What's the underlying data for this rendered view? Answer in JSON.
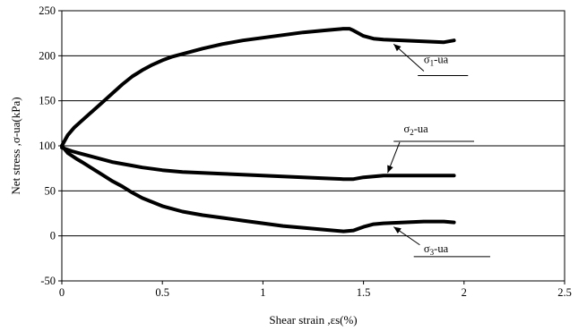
{
  "chart_data": {
    "type": "line",
    "title": "",
    "xlabel": "Shear strain ,εs(%)",
    "ylabel": "Net stress ,σ-ua(kPa)",
    "xlim": [
      0,
      2.5
    ],
    "ylim": [
      -50,
      250
    ],
    "x_ticks": [
      0,
      0.5,
      1,
      1.5,
      2,
      2.5
    ],
    "x_tick_labels": [
      "0",
      "0.5",
      "1",
      "1.5",
      "2",
      "2.5"
    ],
    "y_ticks": [
      -50,
      0,
      50,
      100,
      150,
      200,
      250
    ],
    "y_tick_labels": [
      "-50",
      "0",
      "50",
      "100",
      "150",
      "200",
      "250"
    ],
    "grid": "horizontal",
    "series": [
      {
        "label": "σ1-ua",
        "label_sub": {
          "base": "σ",
          "sub": "1",
          "rest": "-ua"
        },
        "label_anchor": [
          1.8,
          192
        ],
        "label_line": [
          [
            1.77,
            178
          ],
          [
            2.02,
            178
          ]
        ],
        "arrow_from": [
          1.8,
          183
        ],
        "arrow_to": [
          1.65,
          213
        ],
        "x": [
          0,
          0.03,
          0.06,
          0.1,
          0.15,
          0.2,
          0.25,
          0.3,
          0.35,
          0.4,
          0.45,
          0.5,
          0.55,
          0.6,
          0.7,
          0.8,
          0.9,
          1.0,
          1.1,
          1.2,
          1.3,
          1.35,
          1.4,
          1.43,
          1.45,
          1.5,
          1.55,
          1.6,
          1.7,
          1.8,
          1.9,
          1.95
        ],
        "y": [
          100,
          112,
          120,
          128,
          138,
          148,
          158,
          168,
          177,
          184,
          190,
          195,
          199,
          202,
          208,
          213,
          217,
          220,
          223,
          226,
          228,
          229,
          230,
          230,
          228,
          222,
          219,
          218,
          217,
          216,
          215,
          217
        ]
      },
      {
        "label": "σ2-ua",
        "label_sub": {
          "base": "σ",
          "sub": "2",
          "rest": "-ua"
        },
        "label_anchor": [
          1.7,
          115
        ],
        "label_line": [
          [
            1.65,
            105
          ],
          [
            2.05,
            105
          ]
        ],
        "arrow_from": [
          1.68,
          104
        ],
        "arrow_to": [
          1.62,
          70
        ],
        "x": [
          0,
          0.05,
          0.1,
          0.15,
          0.2,
          0.25,
          0.3,
          0.35,
          0.4,
          0.5,
          0.6,
          0.7,
          0.8,
          0.9,
          1.0,
          1.1,
          1.2,
          1.3,
          1.4,
          1.45,
          1.5,
          1.6,
          1.7,
          1.8,
          1.95
        ],
        "y": [
          98,
          94,
          91,
          88,
          85,
          82,
          80,
          78,
          76,
          73,
          71,
          70,
          69,
          68,
          67,
          66,
          65,
          64,
          63,
          63,
          65,
          67,
          67,
          67,
          67
        ]
      },
      {
        "label": "σ3-ua",
        "label_sub": {
          "base": "σ",
          "sub": "3",
          "rest": "-ua"
        },
        "label_anchor": [
          1.8,
          -18
        ],
        "label_line": [
          [
            1.75,
            -23
          ],
          [
            2.13,
            -23
          ]
        ],
        "arrow_from": [
          1.78,
          -10
        ],
        "arrow_to": [
          1.65,
          10
        ],
        "x": [
          0,
          0.03,
          0.07,
          0.1,
          0.15,
          0.2,
          0.25,
          0.3,
          0.35,
          0.4,
          0.5,
          0.6,
          0.7,
          0.8,
          0.9,
          1.0,
          1.1,
          1.2,
          1.3,
          1.4,
          1.45,
          1.5,
          1.55,
          1.6,
          1.7,
          1.8,
          1.9,
          1.95
        ],
        "y": [
          100,
          92,
          86,
          82,
          75,
          68,
          61,
          55,
          48,
          42,
          33,
          27,
          23,
          20,
          17,
          14,
          11,
          9,
          7,
          5,
          6,
          10,
          13,
          14,
          15,
          16,
          16,
          15
        ]
      }
    ]
  }
}
